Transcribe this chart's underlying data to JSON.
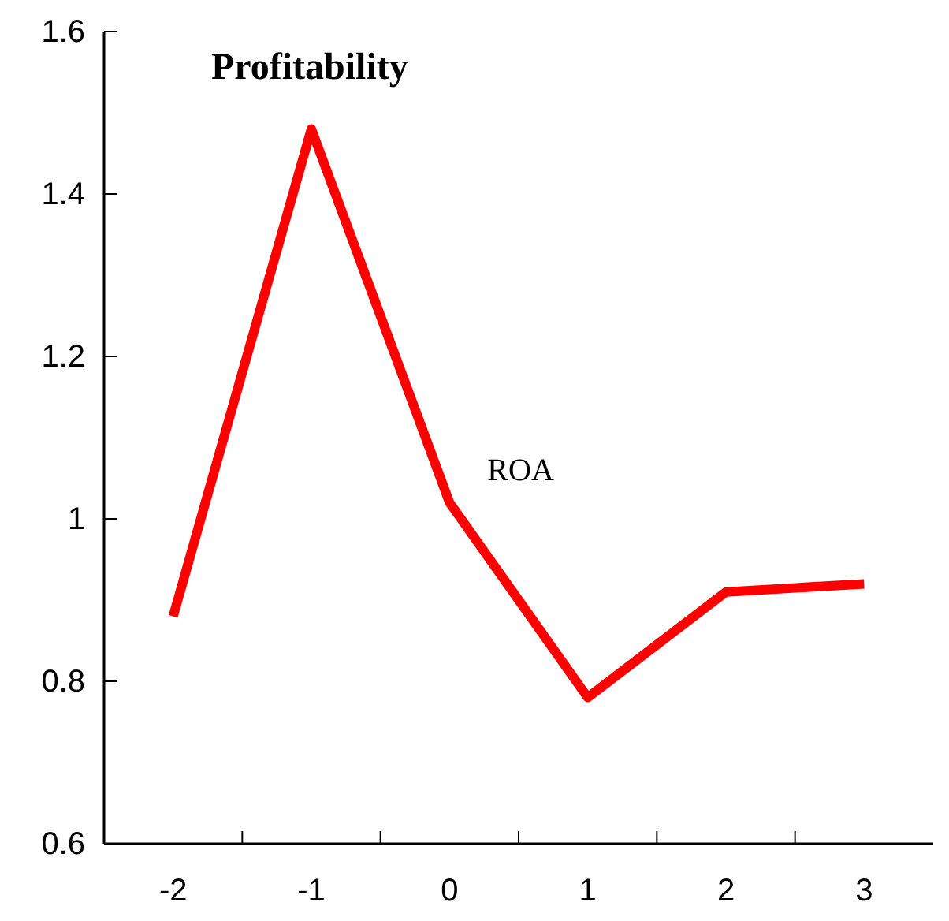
{
  "chart_data": {
    "type": "line",
    "title": "Profitability",
    "categories": [
      "-2",
      "-1",
      "0",
      "1",
      "2",
      "3"
    ],
    "series": [
      {
        "name": "ROA",
        "color": "#ff0000",
        "values": [
          0.88,
          1.48,
          1.02,
          0.78,
          0.91,
          0.92
        ]
      }
    ],
    "ylim": [
      0.6,
      1.6
    ],
    "yticks": [
      0.6,
      0.8,
      1,
      1.2,
      1.4,
      1.6
    ],
    "grid": false,
    "legend": false,
    "marker": "none",
    "line_style": "solid"
  }
}
